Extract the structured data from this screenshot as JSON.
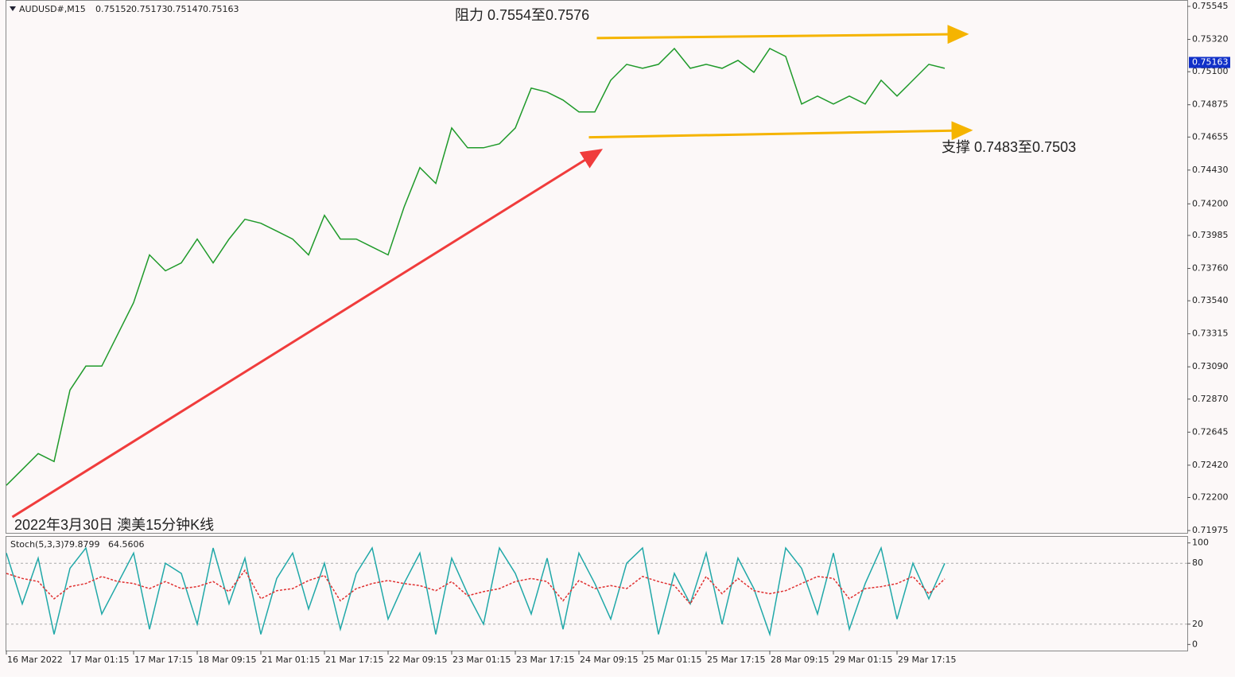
{
  "chart_data": [
    {
      "type": "line",
      "title": "AUDUSD#,M15",
      "quote": [
        0.75152,
        0.75173,
        0.75147,
        0.75163
      ],
      "x": [
        0,
        16,
        32,
        48,
        64,
        80,
        96,
        112,
        128,
        144,
        160,
        176,
        192,
        208,
        224,
        240,
        256,
        272,
        288,
        304,
        320,
        336,
        352,
        368,
        384,
        400,
        416,
        432,
        448,
        464,
        480,
        496,
        512,
        528,
        544,
        560,
        576,
        592,
        608,
        624,
        640,
        656,
        672,
        688,
        704,
        720,
        736,
        752,
        768,
        784,
        800,
        816,
        832,
        848,
        864,
        880,
        896,
        912,
        928,
        944
      ],
      "xlim": [
        0,
        1188
      ],
      "xticks": [
        {
          "value": 0,
          "label": "16 Mar 2022"
        },
        {
          "value": 64,
          "label": "17 Mar 01:15"
        },
        {
          "value": 128,
          "label": "17 Mar 17:15"
        },
        {
          "value": 192,
          "label": "18 Mar 09:15"
        },
        {
          "value": 256,
          "label": "21 Mar 01:15"
        },
        {
          "value": 320,
          "label": "21 Mar 17:15"
        },
        {
          "value": 384,
          "label": "22 Mar 09:15"
        },
        {
          "value": 448,
          "label": "23 Mar 01:15"
        },
        {
          "value": 512,
          "label": "23 Mar 17:15"
        },
        {
          "value": 576,
          "label": "24 Mar 09:15"
        },
        {
          "value": 640,
          "label": "25 Mar 01:15"
        },
        {
          "value": 704,
          "label": "25 Mar 17:15"
        },
        {
          "value": 768,
          "label": "28 Mar 09:15"
        },
        {
          "value": 832,
          "label": "29 Mar 01:15"
        },
        {
          "value": 896,
          "label": "29 Mar 17:15"
        }
      ],
      "series": [
        {
          "color": "#1f9a2a",
          "values": [
            0.72283,
            0.72391,
            0.72499,
            0.72445,
            0.72932,
            0.73095,
            0.73095,
            0.73311,
            0.73527,
            0.73852,
            0.73744,
            0.73798,
            0.7396,
            0.73798,
            0.7396,
            0.74095,
            0.74068,
            0.74014,
            0.7396,
            0.73852,
            0.74122,
            0.7396,
            0.7396,
            0.73906,
            0.73852,
            0.74176,
            0.74447,
            0.74339,
            0.74717,
            0.74582,
            0.74582,
            0.74609,
            0.74717,
            0.74988,
            0.74961,
            0.74907,
            0.74826,
            0.74826,
            0.75042,
            0.7515,
            0.75123,
            0.7515,
            0.75258,
            0.75123,
            0.7515,
            0.75123,
            0.75177,
            0.75096,
            0.75258,
            0.75204,
            0.7488,
            0.74934,
            0.7488,
            0.74934,
            0.7488,
            0.75042,
            0.74934,
            0.75042,
            0.7515,
            0.75123
          ]
        }
      ],
      "ylim": [
        0.71959,
        0.75583
      ],
      "yticks": [
        0.75545,
        {
          "value": 0.7532,
          "label": "0.75320"
        },
        {
          "value": 0.751,
          "label": "0.75100"
        },
        0.74875,
        0.74655,
        {
          "value": 0.7443,
          "label": "0.74430"
        },
        {
          "value": 0.742,
          "label": "0.74200"
        },
        0.73985,
        {
          "value": 0.7376,
          "label": "0.73760"
        },
        {
          "value": 0.7354,
          "label": "0.73540"
        },
        0.73315,
        {
          "value": 0.7309,
          "label": "0.73090"
        },
        {
          "value": 0.7287,
          "label": "0.72870"
        },
        0.72645,
        {
          "value": 0.7242,
          "label": "0.72420"
        },
        {
          "value": 0.722,
          "label": "0.72200"
        },
        0.71975
      ],
      "grid": false,
      "last_price": 0.75163,
      "annotations": [
        {
          "text": "阻力 0.7554至0.7576",
          "x": [
            594,
            966
          ],
          "y": [
            0.75329,
            0.75356
          ],
          "color": "#f5b400"
        },
        {
          "text": "支撑 0.7483至0.7503",
          "x": [
            586,
            970
          ],
          "y": [
            0.74653,
            0.74701
          ],
          "color": "#f5b400"
        },
        {
          "text": "2022年3月30日 澳美15分钟K线",
          "x": [
            6,
            598
          ],
          "y": [
            0.72067,
            0.74566
          ],
          "color": "#f03c3c"
        }
      ]
    },
    {
      "type": "line",
      "title": "Stoch(5,3,3)",
      "readings": [
        79.8799,
        64.5606
      ],
      "series": [
        {
          "color": "#20a8a8",
          "values": [
            90,
            40,
            85,
            10,
            75,
            95,
            30,
            60,
            90,
            15,
            80,
            70,
            20,
            95,
            40,
            85,
            10,
            65,
            90,
            35,
            80,
            15,
            70,
            95,
            25,
            60,
            90,
            10,
            85,
            50,
            20,
            95,
            70,
            30,
            85,
            15,
            90,
            60,
            25,
            80,
            95,
            10,
            70,
            40,
            90,
            20,
            85,
            55,
            10,
            95,
            75,
            30,
            90,
            15,
            60,
            95,
            25,
            80,
            45,
            79.8799
          ]
        },
        {
          "color": "#e03030",
          "dashed": true,
          "values": [
            70,
            65,
            62,
            45,
            57,
            60,
            67,
            62,
            60,
            55,
            62,
            55,
            57,
            62,
            52,
            73,
            45,
            53,
            55,
            63,
            68,
            43,
            55,
            60,
            63,
            60,
            58,
            53,
            62,
            48,
            52,
            55,
            62,
            65,
            62,
            43,
            63,
            55,
            58,
            55,
            67,
            62,
            58,
            40,
            67,
            50,
            65,
            53,
            50,
            53,
            60,
            67,
            65,
            45,
            55,
            57,
            60,
            67,
            50,
            64.5606
          ]
        }
      ],
      "ylim": [
        -6,
        106
      ],
      "yticks": [
        0,
        20,
        80,
        100
      ],
      "levels": [
        20,
        80
      ]
    }
  ]
}
